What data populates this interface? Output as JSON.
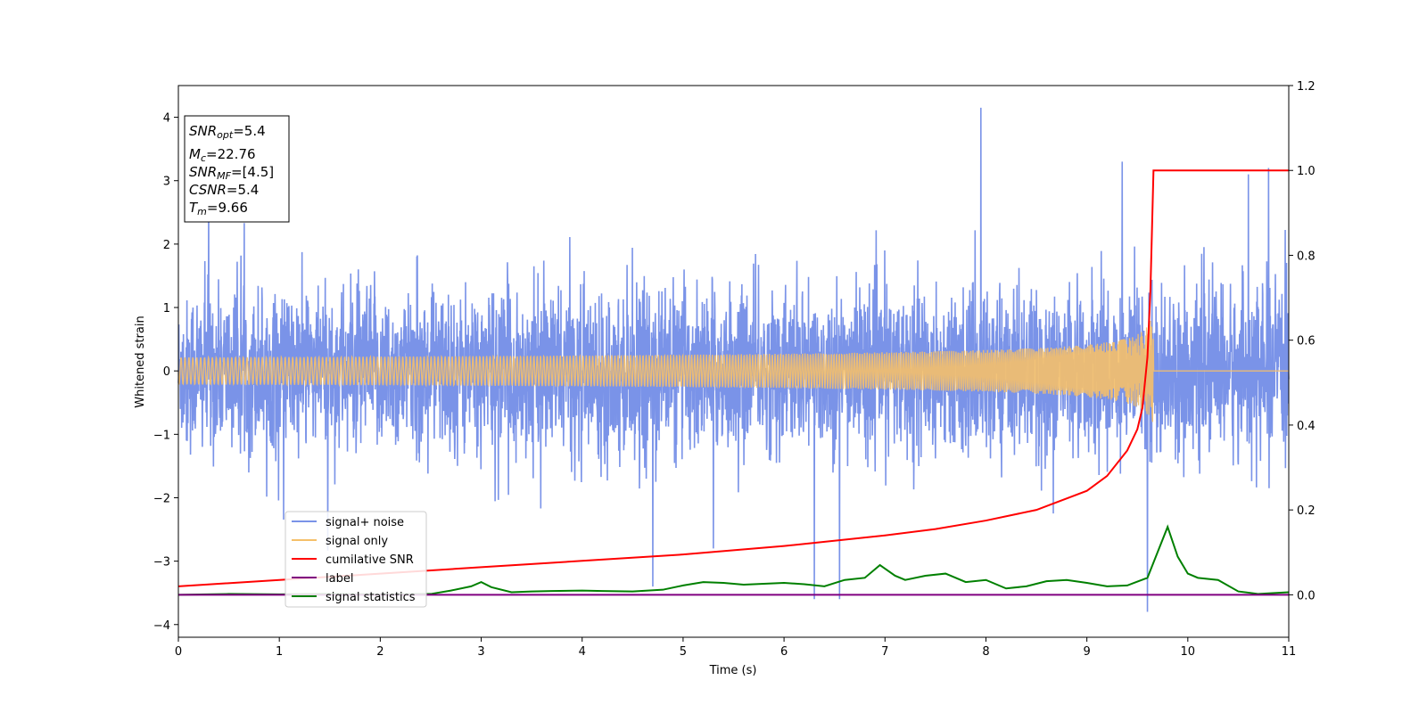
{
  "chart_data": {
    "type": "line",
    "xlabel": "Time (s)",
    "ylabel": "Whitened strain",
    "xlim": [
      0,
      11
    ],
    "ylim_left": [
      -4.2,
      4.5
    ],
    "ylim_right": [
      -0.1,
      1.2
    ],
    "x_ticks": [
      "0",
      "1",
      "2",
      "3",
      "4",
      "5",
      "6",
      "7",
      "8",
      "9",
      "10",
      "11"
    ],
    "y_ticks_left": [
      "−4",
      "−3",
      "−2",
      "−1",
      "0",
      "1",
      "2",
      "3",
      "4"
    ],
    "y_ticks_right": [
      "0.0",
      "0.2",
      "0.4",
      "0.6",
      "0.8",
      "1.0",
      "1.2"
    ],
    "grid": false,
    "legend_position": "lower-left",
    "legend": [
      "signal+ noise",
      "signal only",
      "cumilative SNR",
      "label",
      "signal statistics"
    ],
    "info_box": {
      "snr_opt_base": "SNR",
      "snr_opt_sub": "opt",
      "snr_opt_val": "=5.4",
      "mc_base": "M",
      "mc_sub": "c",
      "mc_val": "=22.76",
      "snr_mf_base": "SNR",
      "snr_mf_sub": "MF",
      "snr_mf_val": "=[4.5]",
      "csnr_base": "CSNR",
      "csnr_val": "=5.4",
      "tm_base": "T",
      "tm_sub": "m",
      "tm_val": "=9.66"
    },
    "colors": {
      "signal_noise": "#7a93e8",
      "signal_only": "#f5c06a",
      "cumulative_snr": "#ff0000",
      "label": "#800080",
      "signal_statistics": "#008000"
    },
    "series": [
      {
        "name": "signal+ noise",
        "axis": "left",
        "description_stats": {
          "std": 0.85,
          "approx_range": [
            -3.8,
            4.2
          ]
        },
        "spikes": [
          [
            0.3,
            2.8
          ],
          [
            4.7,
            -3.4
          ],
          [
            5.3,
            -2.8
          ],
          [
            6.3,
            -3.6
          ],
          [
            6.55,
            -3.6
          ],
          [
            7.95,
            4.15
          ],
          [
            9.35,
            3.3
          ],
          [
            9.6,
            -3.8
          ],
          [
            10.6,
            3.1
          ],
          [
            10.8,
            3.2
          ]
        ]
      },
      {
        "name": "signal only",
        "axis": "left",
        "chirp_end_time": 9.66,
        "peak_amplitude": 1.0
      },
      {
        "name": "cumilative SNR",
        "axis": "right",
        "x": [
          0,
          1,
          2,
          3,
          4,
          5,
          6,
          7,
          7.5,
          8,
          8.5,
          9,
          9.2,
          9.4,
          9.5,
          9.55,
          9.6,
          9.63,
          9.66,
          11
        ],
        "y": [
          0.02,
          0.035,
          0.05,
          0.065,
          0.08,
          0.095,
          0.115,
          0.14,
          0.155,
          0.175,
          0.2,
          0.245,
          0.28,
          0.34,
          0.39,
          0.44,
          0.56,
          0.72,
          1.0,
          1.0
        ]
      },
      {
        "name": "label",
        "axis": "right",
        "x": [
          0,
          11
        ],
        "y": [
          0,
          0
        ]
      },
      {
        "name": "signal statistics",
        "axis": "right",
        "x": [
          0,
          0.5,
          1,
          1.5,
          2,
          2.5,
          2.7,
          2.9,
          3.0,
          3.1,
          3.3,
          3.5,
          3.7,
          4.0,
          4.2,
          4.5,
          4.8,
          5.0,
          5.2,
          5.4,
          5.6,
          5.8,
          6.0,
          6.2,
          6.4,
          6.6,
          6.8,
          6.95,
          7.1,
          7.2,
          7.4,
          7.6,
          7.8,
          8.0,
          8.2,
          8.4,
          8.6,
          8.8,
          9.0,
          9.2,
          9.4,
          9.6,
          9.7,
          9.8,
          9.9,
          10.0,
          10.1,
          10.3,
          10.5,
          10.7,
          11.0
        ],
        "y": [
          0.0,
          0.002,
          0.001,
          0.002,
          0.001,
          0.002,
          0.01,
          0.02,
          0.03,
          0.018,
          0.006,
          0.008,
          0.009,
          0.01,
          0.009,
          0.008,
          0.012,
          0.022,
          0.03,
          0.028,
          0.024,
          0.026,
          0.028,
          0.025,
          0.02,
          0.035,
          0.04,
          0.07,
          0.045,
          0.035,
          0.045,
          0.05,
          0.03,
          0.035,
          0.015,
          0.02,
          0.032,
          0.035,
          0.028,
          0.02,
          0.022,
          0.04,
          0.1,
          0.16,
          0.09,
          0.05,
          0.04,
          0.035,
          0.008,
          0.002,
          0.006
        ]
      }
    ]
  }
}
